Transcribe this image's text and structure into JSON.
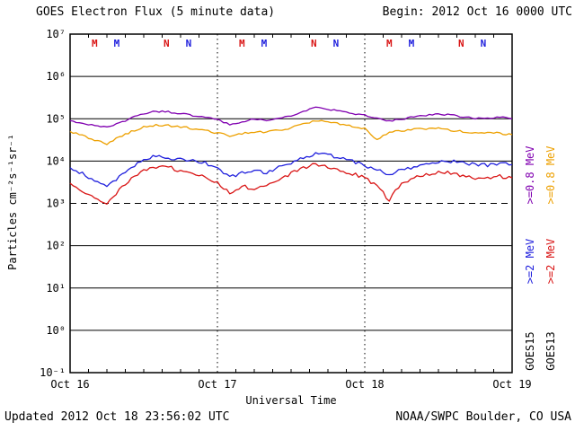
{
  "header": {
    "title": "GOES Electron Flux (5 minute data)",
    "begin": "Begin: 2012 Oct 16 0000 UTC"
  },
  "footer": {
    "updated": "Updated 2012 Oct 18 23:56:02 UTC",
    "credit": "NOAA/SWPC Boulder, CO USA"
  },
  "axes": {
    "y_title_display": "Particles cm⁻²s⁻¹sr⁻¹",
    "x_title": "Universal Time"
  },
  "legend": {
    "items": [
      {
        "label": ">=0.8 MeV",
        "color": "#8000b0"
      },
      {
        "label": ">=0.8 MeV",
        "color": "#eda000"
      },
      {
        "label": ">=2 MeV",
        "color": "#2020dd"
      },
      {
        "label": ">=2 MeV",
        "color": "#d91414"
      },
      {
        "label": "GOES15",
        "color": "#000000"
      },
      {
        "label": "GOES13",
        "color": "#000000"
      }
    ]
  },
  "chart_data": {
    "type": "line",
    "title": "GOES Electron Flux (5 minute data)",
    "xlabel": "Universal Time",
    "ylabel": "Particles cm^-2 s^-1 sr^-1",
    "x_unit_hours_since": "2012 Oct 16 0000 UTC",
    "ylog": true,
    "ylim": [
      0.1,
      10000000
    ],
    "y_tick_labels": [
      "10⁷",
      "10⁶",
      "10⁵",
      "10⁴",
      "10³",
      "10²",
      "10¹",
      "10⁰",
      "10⁻¹"
    ],
    "x_ticks": [
      "Oct 16",
      "Oct 17",
      "Oct 18",
      "Oct 19"
    ],
    "x_tick_hours": [
      0,
      24,
      48,
      72
    ],
    "grid_decades": [
      1,
      10,
      100,
      10000,
      100000,
      1000000
    ],
    "threshold": {
      "value": 1000,
      "style": "dashed"
    },
    "day_lines_hours": [
      24,
      48
    ],
    "x_hours": [
      0,
      2,
      4,
      6,
      8,
      10,
      12,
      14,
      16,
      18,
      20,
      22,
      24,
      26,
      28,
      30,
      32,
      34,
      36,
      38,
      40,
      42,
      44,
      46,
      48,
      50,
      52,
      54,
      56,
      58,
      60,
      62,
      64,
      66,
      68,
      70,
      72
    ],
    "series": [
      {
        "name": "GOES15 >=0.8 MeV",
        "color": "#8000b0",
        "values": [
          90000,
          80000,
          68000,
          62000,
          78000,
          105000,
          135000,
          150000,
          145000,
          132000,
          120000,
          110000,
          95000,
          72000,
          82000,
          100000,
          92000,
          100000,
          120000,
          150000,
          185000,
          170000,
          150000,
          130000,
          120000,
          100000,
          88000,
          98000,
          110000,
          120000,
          130000,
          122000,
          112000,
          103000,
          100000,
          108000,
          100000
        ]
      },
      {
        "name": "GOES13 >=0.8 MeV",
        "color": "#eda000",
        "values": [
          50000,
          40000,
          30000,
          26000,
          36000,
          50000,
          65000,
          70000,
          69000,
          64000,
          59000,
          54000,
          46000,
          39000,
          44000,
          50000,
          48000,
          54000,
          60000,
          75000,
          92000,
          86000,
          76000,
          66000,
          60000,
          32000,
          48000,
          52000,
          56000,
          58000,
          58000,
          54000,
          50000,
          46000,
          45000,
          46000,
          42000
        ]
      },
      {
        "name": "GOES15 >=2 MeV",
        "color": "#2020dd",
        "values": [
          7000,
          5000,
          3200,
          2600,
          4200,
          7000,
          11000,
          13000,
          12000,
          11000,
          10000,
          9000,
          7000,
          4200,
          5200,
          6200,
          5200,
          7000,
          9200,
          12000,
          15000,
          14000,
          12000,
          10000,
          8000,
          6000,
          5000,
          6200,
          7200,
          8200,
          9200,
          10000,
          9200,
          8200,
          8000,
          9000,
          8200
        ]
      },
      {
        "name": "GOES13 >=2 MeV",
        "color": "#d91414",
        "values": [
          3000,
          2000,
          1300,
          1000,
          2000,
          3800,
          6000,
          7500,
          7000,
          6000,
          5000,
          4200,
          3000,
          1800,
          2600,
          2100,
          2600,
          3600,
          5000,
          7000,
          8200,
          7600,
          6200,
          5000,
          4000,
          2500,
          1200,
          3000,
          4200,
          5000,
          5500,
          5100,
          4600,
          4100,
          4000,
          4400,
          4000
        ]
      }
    ],
    "markers": [
      {
        "label": "M",
        "hour": 4.0,
        "color": "#d91414"
      },
      {
        "label": "M",
        "hour": 7.6,
        "color": "#2020dd"
      },
      {
        "label": "N",
        "hour": 15.7,
        "color": "#d91414"
      },
      {
        "label": "N",
        "hour": 19.3,
        "color": "#2020dd"
      },
      {
        "label": "M",
        "hour": 28.0,
        "color": "#d91414"
      },
      {
        "label": "M",
        "hour": 31.6,
        "color": "#2020dd"
      },
      {
        "label": "N",
        "hour": 39.7,
        "color": "#d91414"
      },
      {
        "label": "N",
        "hour": 43.3,
        "color": "#2020dd"
      },
      {
        "label": "M",
        "hour": 52.0,
        "color": "#d91414"
      },
      {
        "label": "M",
        "hour": 55.6,
        "color": "#2020dd"
      },
      {
        "label": "N",
        "hour": 63.7,
        "color": "#d91414"
      },
      {
        "label": "N",
        "hour": 67.3,
        "color": "#2020dd"
      }
    ]
  }
}
